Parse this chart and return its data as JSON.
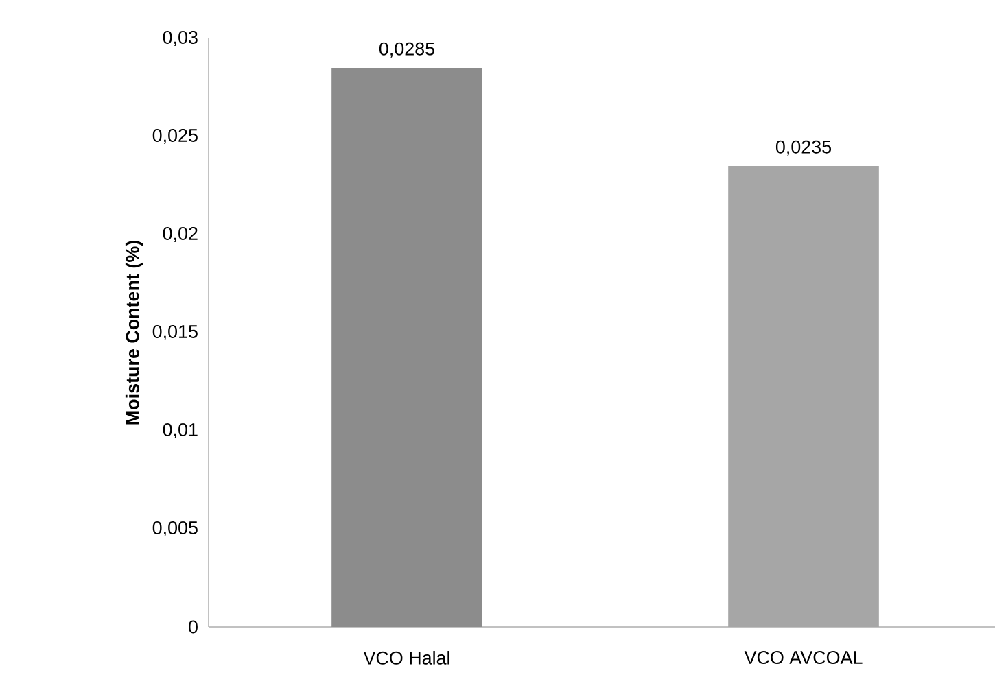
{
  "chart_data": {
    "type": "bar",
    "ylabel": "Moisture Content (%)",
    "categories": [
      "VCO Halal",
      "VCO AVCOAL"
    ],
    "values": [
      0.0285,
      0.0235
    ],
    "value_labels": [
      "0,0285",
      "0,0235"
    ],
    "colors": [
      "#8c8c8c",
      "#a6a6a6"
    ],
    "ylim": [
      0,
      0.03
    ],
    "yticks": [
      {
        "value": 0,
        "label": "0"
      },
      {
        "value": 0.005,
        "label": "0,005"
      },
      {
        "value": 0.01,
        "label": "0,01"
      },
      {
        "value": 0.015,
        "label": "0,015"
      },
      {
        "value": 0.02,
        "label": "0,02"
      },
      {
        "value": 0.025,
        "label": "0,025"
      },
      {
        "value": 0.03,
        "label": "0,03"
      }
    ],
    "grid": false
  }
}
